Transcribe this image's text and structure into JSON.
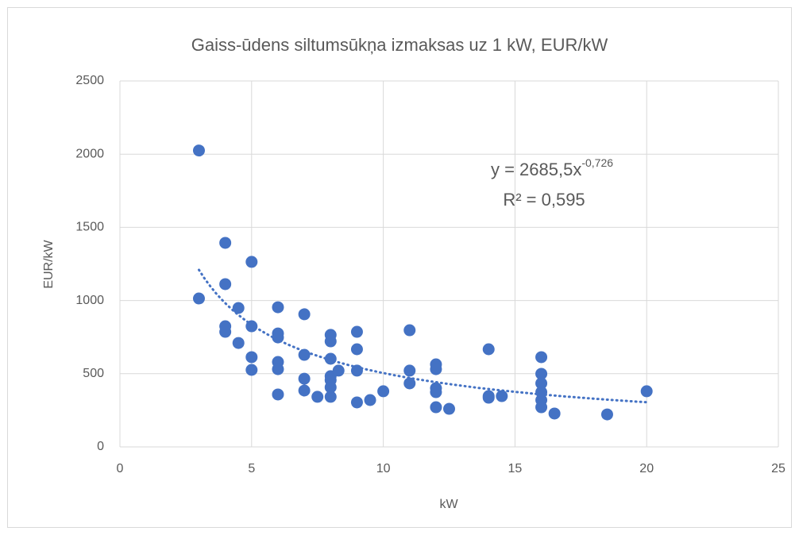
{
  "chart_data": {
    "type": "scatter",
    "title": "Gaiss-ūdens siltumsūkņa izmaksas uz 1 kW, EUR/kW",
    "xlabel": "kW",
    "ylabel": "EUR/kW",
    "color": "#4472c4",
    "grid": true,
    "xlim": [
      0,
      25
    ],
    "xticks": [
      0,
      5,
      10,
      15,
      20,
      25
    ],
    "ylim": [
      0,
      2500
    ],
    "yticks": [
      0,
      500,
      1000,
      1500,
      2000,
      2500
    ],
    "x": [
      3,
      3,
      4,
      4,
      4,
      4,
      4.5,
      4.5,
      5,
      5,
      5,
      5,
      6,
      6,
      6,
      6,
      6,
      6,
      7,
      7,
      7,
      7,
      7.5,
      8,
      8,
      8,
      8,
      8,
      8,
      8,
      8.3,
      9,
      9,
      9,
      9,
      9.5,
      10,
      11,
      11,
      11,
      12,
      12,
      12,
      12,
      12,
      12.5,
      14,
      14,
      14,
      14.5,
      16,
      16,
      16,
      16,
      16,
      16,
      16.5,
      18.5,
      20
    ],
    "y": [
      2025,
      1014,
      1394,
      1112,
      824,
      786,
      949,
      710,
      1264,
      824,
      613,
      526,
      954,
      775,
      748,
      580,
      531,
      358,
      906,
      629,
      466,
      385,
      342,
      765,
      721,
      602,
      483,
      456,
      407,
      342,
      521,
      786,
      667,
      521,
      304,
      320,
      380,
      797,
      521,
      434,
      564,
      531,
      401,
      374,
      271,
      260,
      667,
      347,
      336,
      347,
      613,
      499,
      434,
      374,
      320,
      271,
      228,
      222,
      380
    ],
    "trendline": {
      "type": "power",
      "a": 2685.5,
      "b": -0.726,
      "equation_label": "y = 2685,5x",
      "exponent_label": "-0,726",
      "r2_label": "R² = 0,595"
    }
  }
}
